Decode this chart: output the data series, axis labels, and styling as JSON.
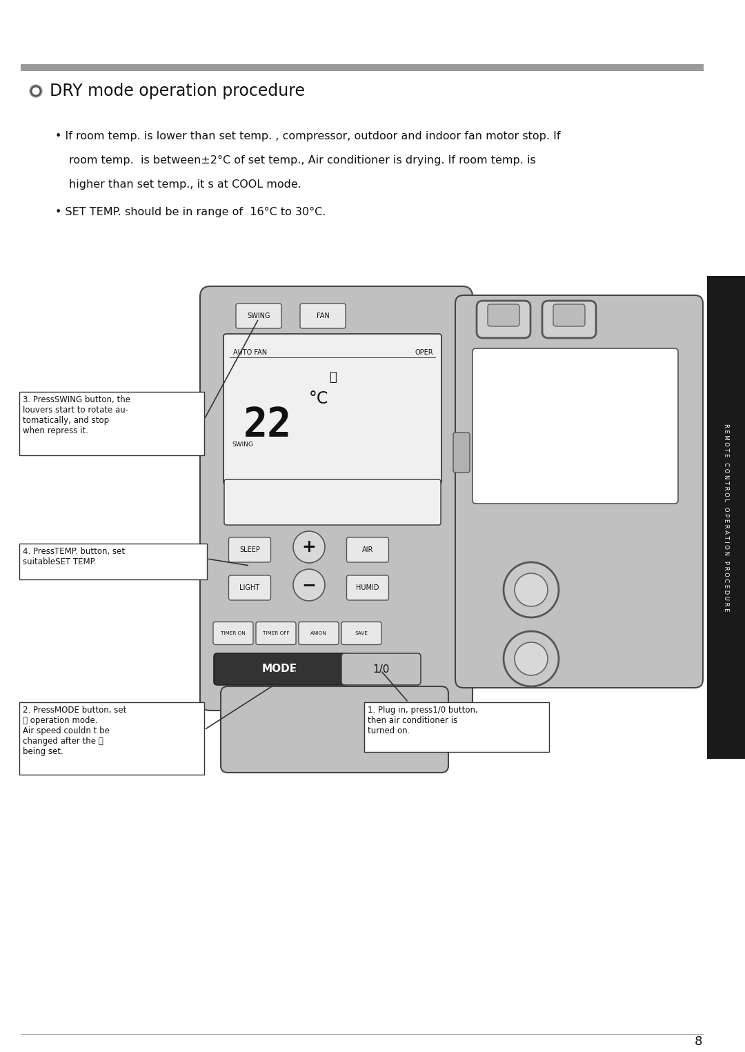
{
  "bg_color": "#ffffff",
  "page_number": "8",
  "title": "DRY mode operation procedure",
  "header_line_color": "#999999",
  "bullet1_line1": "• If room temp. is lower than set temp. , compressor, outdoor and indoor fan motor stop. If",
  "bullet1_line2": "room temp.  is between±2°C of set temp., Air conditioner is drying. If room temp. is",
  "bullet1_line3": "higher than set temp., it s at COOL mode.",
  "bullet2": "• SET TEMP. should be in range of  16°C to 30°C.",
  "sidebar_text": "R E M O T E   C O N T R O L   O P E R A T I O N   P R O C E D U R E",
  "sidebar_bg": "#1a1a1a",
  "sidebar_text_color": "#ffffff",
  "label1": "3. PressSWING button, the\nlouvers start to rotate au-\ntomatically, and stop\nwhen repress it.",
  "label2": "4. PressTEMP. button, set\nsuitableSET TEMP.",
  "label3": "2. PressMODE button, set\n⑂ operation mode.\nAir speed couldn t be\nchanged after the ⑂\nbeing set.",
  "label4": "1. Plug in, press1/0 button,\nthen air conditioner is\nturned on.",
  "remote_body_color": "#c0c0c0",
  "remote_screen_bg": "#f0f0f0",
  "remote_mode_label": "MODE",
  "remote_mode_value": "1/0"
}
